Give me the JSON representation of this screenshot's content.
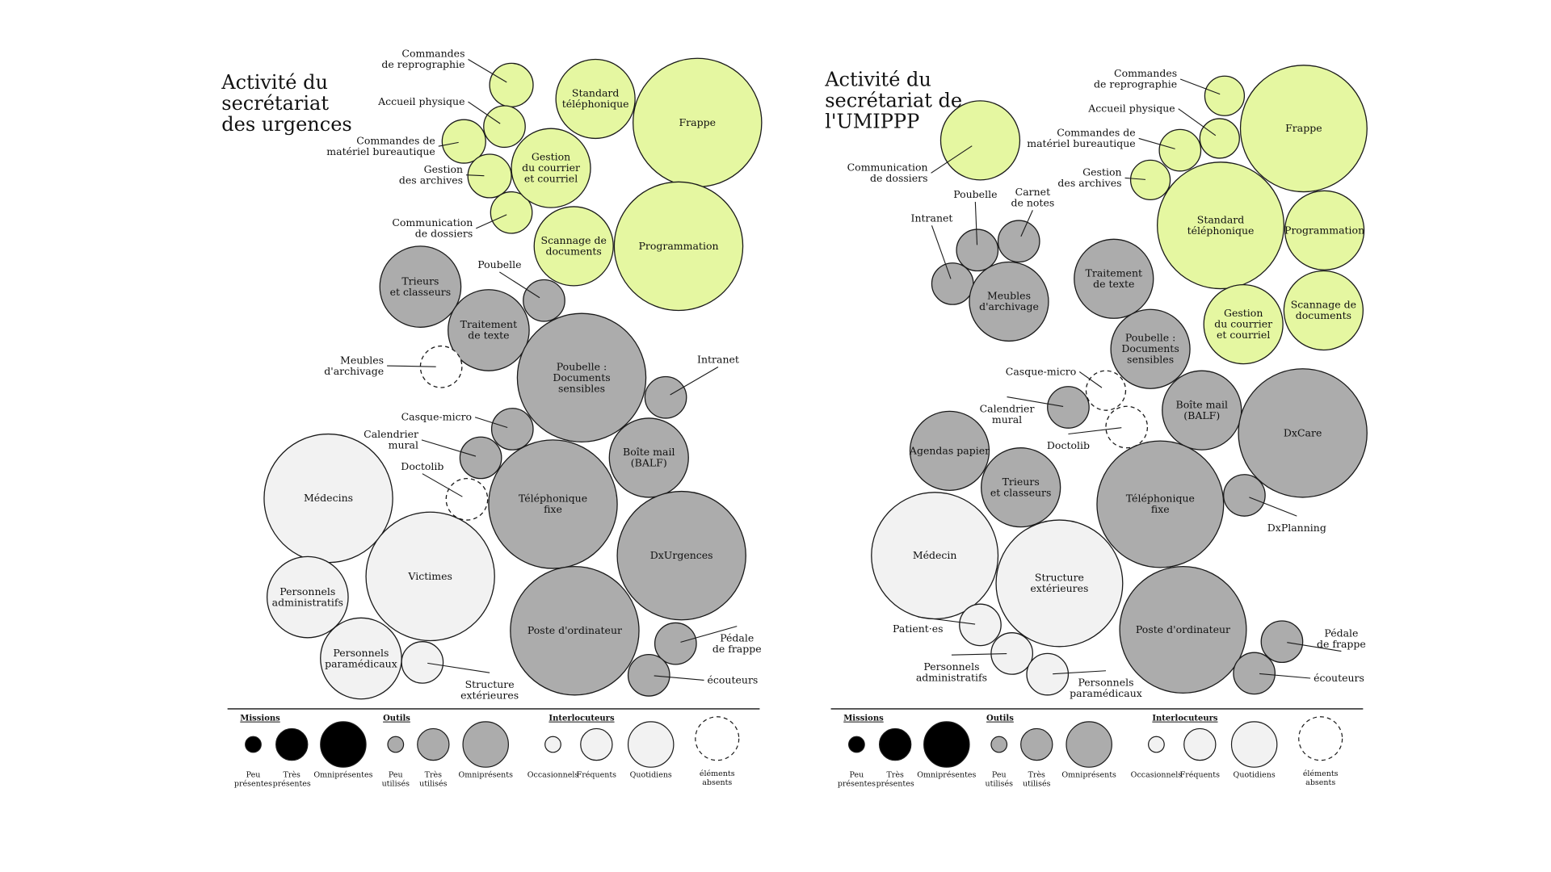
{
  "colors": {
    "mission": "#e5f7a1",
    "outil": "#acacac",
    "interlocuteur": "#f2f2f2",
    "stroke": "#1a1a1a",
    "legend_mission": "#000000"
  },
  "panels": [
    {
      "title": [
        "Activité du",
        "secrétariat",
        "des urgences"
      ],
      "bubbles": [
        {
          "label": [
            "Commandes",
            "de reprographie"
          ],
          "cat": "mission",
          "size": "small",
          "pos": "outside"
        },
        {
          "label": [
            "Accueil physique"
          ],
          "cat": "mission",
          "size": "small",
          "pos": "outside"
        },
        {
          "label": [
            "Commandes de",
            "matériel bureautique"
          ],
          "cat": "mission",
          "size": "small",
          "pos": "outside"
        },
        {
          "label": [
            "Gestion",
            "des archives"
          ],
          "cat": "mission",
          "size": "small",
          "pos": "outside"
        },
        {
          "label": [
            "Communication",
            "de dossiers"
          ],
          "cat": "mission",
          "size": "small",
          "pos": "outside"
        },
        {
          "label": [
            "Standard",
            "téléphonique"
          ],
          "cat": "mission",
          "size": "medium",
          "pos": "inside"
        },
        {
          "label": [
            "Gestion",
            "du courrier",
            "et courriel"
          ],
          "cat": "mission",
          "size": "medium",
          "pos": "inside"
        },
        {
          "label": [
            "Scannage de",
            "documents"
          ],
          "cat": "mission",
          "size": "medium",
          "pos": "inside"
        },
        {
          "label": [
            "Frappe"
          ],
          "cat": "mission",
          "size": "large",
          "pos": "inside"
        },
        {
          "label": [
            "Programmation"
          ],
          "cat": "mission",
          "size": "large",
          "pos": "inside"
        },
        {
          "label": [
            "Trieurs",
            "et classeurs"
          ],
          "cat": "outil",
          "size": "medium",
          "pos": "inside"
        },
        {
          "label": [
            "Poubelle"
          ],
          "cat": "outil",
          "size": "small",
          "pos": "outside"
        },
        {
          "label": [
            "Traitement",
            "de texte"
          ],
          "cat": "outil",
          "size": "medium",
          "pos": "inside"
        },
        {
          "label": [
            "Meubles",
            "d'archivage"
          ],
          "cat": "absent",
          "size": "small",
          "pos": "outside"
        },
        {
          "label": [
            "Poubelle :",
            "Documents",
            "sensibles"
          ],
          "cat": "outil",
          "size": "large",
          "pos": "inside"
        },
        {
          "label": [
            "Intranet"
          ],
          "cat": "outil",
          "size": "small",
          "pos": "outside"
        },
        {
          "label": [
            "Casque-micro"
          ],
          "cat": "outil",
          "size": "small",
          "pos": "outside"
        },
        {
          "label": [
            "Calendrier",
            "mural"
          ],
          "cat": "outil",
          "size": "small",
          "pos": "outside"
        },
        {
          "label": [
            "Doctolib"
          ],
          "cat": "absent",
          "size": "small",
          "pos": "outside"
        },
        {
          "label": [
            "Boîte mail",
            "(BALF)"
          ],
          "cat": "outil",
          "size": "medium",
          "pos": "inside"
        },
        {
          "label": [
            "Téléphonique",
            "fixe"
          ],
          "cat": "outil",
          "size": "large",
          "pos": "inside"
        },
        {
          "label": [
            "DxUrgences"
          ],
          "cat": "outil",
          "size": "large",
          "pos": "inside"
        },
        {
          "label": [
            "Poste d'ordinateur"
          ],
          "cat": "outil",
          "size": "large",
          "pos": "inside"
        },
        {
          "label": [
            "Pédale",
            "de frappe"
          ],
          "cat": "outil",
          "size": "small",
          "pos": "outside"
        },
        {
          "label": [
            "écouteurs"
          ],
          "cat": "outil",
          "size": "small",
          "pos": "outside"
        },
        {
          "label": [
            "Médecins"
          ],
          "cat": "interlocuteur",
          "size": "large",
          "pos": "inside"
        },
        {
          "label": [
            "Victimes"
          ],
          "cat": "interlocuteur",
          "size": "large",
          "pos": "inside"
        },
        {
          "label": [
            "Personnels",
            "administratifs"
          ],
          "cat": "interlocuteur",
          "size": "medium",
          "pos": "inside"
        },
        {
          "label": [
            "Personnels",
            "paramédicaux"
          ],
          "cat": "interlocuteur",
          "size": "medium",
          "pos": "inside"
        },
        {
          "label": [
            "Structure",
            "extérieures"
          ],
          "cat": "interlocuteur",
          "size": "small",
          "pos": "outside"
        }
      ]
    },
    {
      "title": [
        "Activité du",
        "secrétariat de",
        "l'UMIPPP"
      ],
      "bubbles": [
        {
          "label": [
            "Communication",
            "de dossiers"
          ],
          "cat": "mission",
          "size": "medium",
          "pos": "outside"
        },
        {
          "label": [
            "Commandes",
            "de reprographie"
          ],
          "cat": "mission",
          "size": "small",
          "pos": "outside"
        },
        {
          "label": [
            "Accueil physique"
          ],
          "cat": "mission",
          "size": "small",
          "pos": "outside"
        },
        {
          "label": [
            "Commandes de",
            "matériel bureautique"
          ],
          "cat": "mission",
          "size": "small",
          "pos": "outside"
        },
        {
          "label": [
            "Gestion",
            "des archives"
          ],
          "cat": "mission",
          "size": "small",
          "pos": "outside"
        },
        {
          "label": [
            "Frappe"
          ],
          "cat": "mission",
          "size": "large",
          "pos": "inside"
        },
        {
          "label": [
            "Standard",
            "téléphonique"
          ],
          "cat": "mission",
          "size": "large",
          "pos": "inside"
        },
        {
          "label": [
            "Programmation"
          ],
          "cat": "mission",
          "size": "medium",
          "pos": "inside"
        },
        {
          "label": [
            "Gestion",
            "du courrier",
            "et courriel"
          ],
          "cat": "mission",
          "size": "medium",
          "pos": "inside"
        },
        {
          "label": [
            "Scannage de",
            "documents"
          ],
          "cat": "mission",
          "size": "medium",
          "pos": "inside"
        },
        {
          "label": [
            "Intranet"
          ],
          "cat": "outil",
          "size": "small",
          "pos": "outside"
        },
        {
          "label": [
            "Poubelle"
          ],
          "cat": "outil",
          "size": "small",
          "pos": "outside"
        },
        {
          "label": [
            "Carnet",
            "de notes"
          ],
          "cat": "outil",
          "size": "small",
          "pos": "outside"
        },
        {
          "label": [
            "Meubles",
            "d'archivage"
          ],
          "cat": "outil",
          "size": "medium",
          "pos": "inside"
        },
        {
          "label": [
            "Traitement",
            "de texte"
          ],
          "cat": "outil",
          "size": "medium",
          "pos": "inside"
        },
        {
          "label": [
            "Poubelle :",
            "Documents",
            "sensibles"
          ],
          "cat": "outil",
          "size": "medium",
          "pos": "inside"
        },
        {
          "label": [
            "Casque-micro"
          ],
          "cat": "absent",
          "size": "small",
          "pos": "outside"
        },
        {
          "label": [
            "Calendrier",
            "mural"
          ],
          "cat": "outil",
          "size": "small",
          "pos": "outside"
        },
        {
          "label": [
            "Doctolib"
          ],
          "cat": "absent",
          "size": "small",
          "pos": "outside"
        },
        {
          "label": [
            "Boîte mail",
            "(BALF)"
          ],
          "cat": "outil",
          "size": "medium",
          "pos": "inside"
        },
        {
          "label": [
            "DxCare"
          ],
          "cat": "outil",
          "size": "large",
          "pos": "inside"
        },
        {
          "label": [
            "Agendas papier"
          ],
          "cat": "outil",
          "size": "medium",
          "pos": "inside"
        },
        {
          "label": [
            "Trieurs",
            "et classeurs"
          ],
          "cat": "outil",
          "size": "medium",
          "pos": "inside"
        },
        {
          "label": [
            "Téléphonique",
            "fixe"
          ],
          "cat": "outil",
          "size": "large",
          "pos": "inside"
        },
        {
          "label": [
            "DxPlanning"
          ],
          "cat": "outil",
          "size": "small",
          "pos": "outside"
        },
        {
          "label": [
            "Poste d'ordinateur"
          ],
          "cat": "outil",
          "size": "large",
          "pos": "inside"
        },
        {
          "label": [
            "Pédale",
            "de frappe"
          ],
          "cat": "outil",
          "size": "small",
          "pos": "outside"
        },
        {
          "label": [
            "écouteurs"
          ],
          "cat": "outil",
          "size": "small",
          "pos": "outside"
        },
        {
          "label": [
            "Médecin"
          ],
          "cat": "interlocuteur",
          "size": "large",
          "pos": "inside"
        },
        {
          "label": [
            "Structure",
            "extérieures"
          ],
          "cat": "interlocuteur",
          "size": "large",
          "pos": "inside"
        },
        {
          "label": [
            "Patient·es"
          ],
          "cat": "interlocuteur",
          "size": "small",
          "pos": "outside"
        },
        {
          "label": [
            "Personnels",
            "administratifs"
          ],
          "cat": "interlocuteur",
          "size": "small",
          "pos": "outside"
        },
        {
          "label": [
            "Personnels",
            "paramédicaux"
          ],
          "cat": "interlocuteur",
          "size": "small",
          "pos": "outside"
        }
      ]
    }
  ],
  "legend": {
    "groups": [
      {
        "heading": "Missions",
        "cat": "mission",
        "items": [
          [
            "Peu",
            "présentes"
          ],
          [
            "Très",
            "présentes"
          ],
          [
            "Omniprésentes"
          ]
        ]
      },
      {
        "heading": "Outils",
        "cat": "outil",
        "items": [
          [
            "Peu",
            "utilisés"
          ],
          [
            "Très",
            "utilisés"
          ],
          [
            "Omniprésents"
          ]
        ]
      },
      {
        "heading": "Interlocuteurs",
        "cat": "interlocuteur",
        "items": [
          [
            "Occasionnels"
          ],
          [
            "Fréquents"
          ],
          [
            "Quotidiens"
          ]
        ]
      }
    ],
    "absent": [
      "éléments",
      "absents"
    ]
  }
}
